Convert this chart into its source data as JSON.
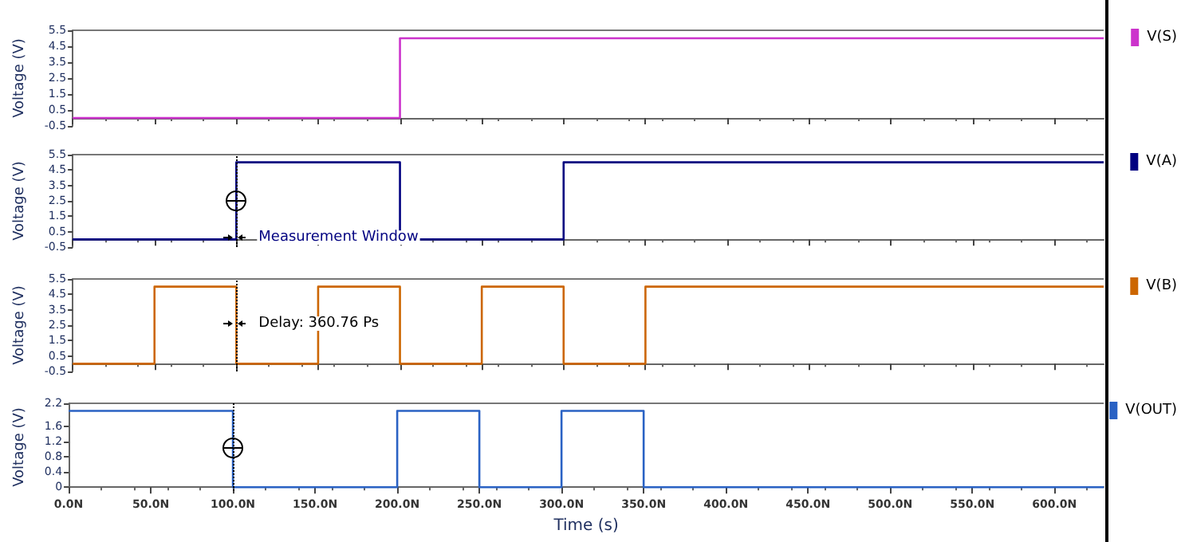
{
  "chart_data": [
    {
      "type": "step",
      "ylabel": "Voltage (V)",
      "xlim": [
        0,
        630
      ],
      "ylim": [
        -0.5,
        5.5
      ],
      "yticks": [
        -0.5,
        0.5,
        1.5,
        2.5,
        3.5,
        4.5,
        5.5
      ],
      "xticks": [
        0,
        50,
        100,
        150,
        200,
        250,
        300,
        350,
        400,
        450,
        500,
        550,
        600
      ],
      "tick_labels": "y",
      "legend": "right",
      "series": [
        {
          "name": "V(S)",
          "color": "#cc33cc",
          "x": [
            0,
            200,
            630
          ],
          "values": [
            0,
            5,
            5
          ]
        }
      ]
    },
    {
      "type": "step",
      "ylabel": "Voltage (V)",
      "xlim": [
        0,
        630
      ],
      "ylim": [
        -0.5,
        5.5
      ],
      "yticks": [
        -0.5,
        0.5,
        1.5,
        2.5,
        3.5,
        4.5,
        5.5
      ],
      "xticks": [
        0,
        50,
        100,
        150,
        200,
        250,
        300,
        350,
        400,
        450,
        500,
        550,
        600
      ],
      "tick_labels": "y",
      "legend": "right",
      "series": [
        {
          "name": "V(A)",
          "color": "#000080",
          "x": [
            0,
            100,
            200,
            300,
            630
          ],
          "values": [
            0,
            5,
            0,
            5,
            5
          ]
        }
      ],
      "ref_lines": [
        {
          "axis": "x",
          "value": 100,
          "line_style": "dotted"
        }
      ],
      "annotations": [
        {
          "text": "Measurement Window",
          "x": 100,
          "y": 0
        }
      ]
    },
    {
      "type": "step",
      "ylabel": "Voltage (V)",
      "xlim": [
        0,
        630
      ],
      "ylim": [
        -0.5,
        5.5
      ],
      "yticks": [
        -0.5,
        0.5,
        1.5,
        2.5,
        3.5,
        4.5,
        5.5
      ],
      "xticks": [
        0,
        50,
        100,
        150,
        200,
        250,
        300,
        350,
        400,
        450,
        500,
        550,
        600
      ],
      "tick_labels": "y",
      "legend": "right",
      "series": [
        {
          "name": "V(B)",
          "color": "#cc6600",
          "x": [
            0,
            50,
            100,
            150,
            200,
            250,
            300,
            350,
            630
          ],
          "values": [
            0,
            5,
            0,
            5,
            0,
            5,
            0,
            5,
            5
          ]
        }
      ],
      "ref_lines": [
        {
          "axis": "x",
          "value": 100,
          "line_style": "dotted"
        }
      ],
      "annotations": [
        {
          "text": "Delay: 360.76 Ps",
          "x": 100,
          "y": 2.5
        }
      ]
    },
    {
      "type": "step",
      "ylabel": "Voltage (V)",
      "xlabel": "Time (s)",
      "xlim": [
        0,
        630
      ],
      "ylim": [
        -0.1,
        2.2
      ],
      "yticks": [
        0.0,
        0.4,
        0.8,
        1.2,
        1.6,
        2.2
      ],
      "xticks": [
        {
          "value": 0,
          "label": "0.0N"
        },
        {
          "value": 50,
          "label": "50.0N"
        },
        {
          "value": 100,
          "label": "100.0N"
        },
        {
          "value": 150,
          "label": "150.0N"
        },
        {
          "value": 200,
          "label": "200.0N"
        },
        {
          "value": 250,
          "label": "250.0N"
        },
        {
          "value": 300,
          "label": "300.0N"
        },
        {
          "value": 350,
          "label": "350.0N"
        },
        {
          "value": 400,
          "label": "400.0N"
        },
        {
          "value": 450,
          "label": "450.0N"
        },
        {
          "value": 500,
          "label": "500.0N"
        },
        {
          "value": 550,
          "label": "550.0N"
        },
        {
          "value": 600,
          "label": "600.0N"
        }
      ],
      "legend": "right",
      "series": [
        {
          "name": "V(OUT)",
          "color": "#2a62c4",
          "x": [
            0,
            100,
            200,
            250,
            300,
            350,
            630
          ],
          "values": [
            2.0,
            0,
            2.0,
            0,
            2.0,
            0,
            0
          ]
        }
      ],
      "ref_lines": [
        {
          "axis": "x",
          "value": 100,
          "line_style": "dotted"
        }
      ]
    }
  ]
}
